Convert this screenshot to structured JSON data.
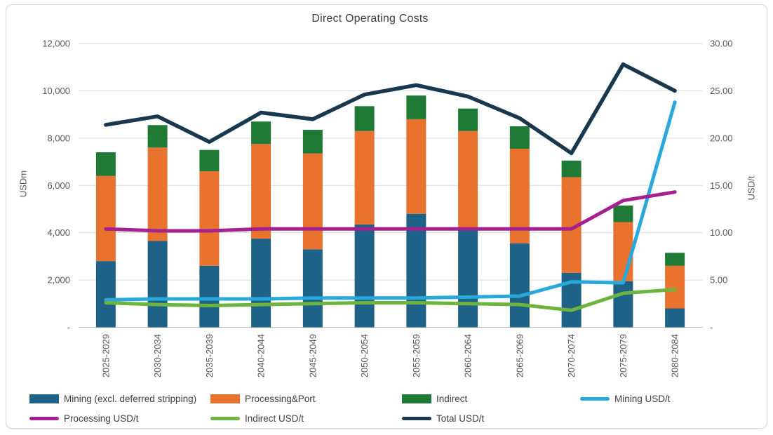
{
  "chart_data": {
    "type": "combo-stacked-bar-line",
    "title": "Direct Operating Costs",
    "categories": [
      "2025-2029",
      "2030-2034",
      "2035-2039",
      "2040-2044",
      "2045-2049",
      "2050-2054",
      "2055-2059",
      "2060-2064",
      "2065-2069",
      "2070-2074",
      "2075-2079",
      "2080-2084"
    ],
    "left_axis": {
      "label": "USDm",
      "min": 0,
      "max": 12000,
      "step": 2000,
      "tick_labels_top_down": [
        "12,000",
        "10,000",
        "8,000",
        "6,000",
        "4,000",
        "2,000",
        "-"
      ]
    },
    "right_axis": {
      "label": "USD/t",
      "min": 0,
      "max": 30,
      "step": 5,
      "tick_labels_top_down": [
        "30.00",
        "25.00",
        "20.00",
        "15.00",
        "10.00",
        "5.00",
        "-"
      ]
    },
    "grid": "horizontal",
    "bar_series": [
      {
        "name": "Mining (excl. deferred stripping)",
        "color": "#1f6287",
        "values": [
          2800,
          3650,
          2600,
          3750,
          3300,
          4350,
          4800,
          4150,
          3550,
          2300,
          1950,
          800
        ]
      },
      {
        "name": "Processing&Port",
        "color": "#e8722e",
        "values": [
          3600,
          3950,
          4000,
          4000,
          4050,
          3950,
          4000,
          4150,
          4000,
          4050,
          2500,
          1800
        ]
      },
      {
        "name": "Indirect",
        "color": "#1e7a34",
        "values": [
          1000,
          950,
          900,
          950,
          1000,
          1050,
          1000,
          950,
          950,
          700,
          700,
          550
        ]
      }
    ],
    "line_series": [
      {
        "name": "Mining USD/t",
        "color": "#29a8dc",
        "values": [
          2.9,
          3.0,
          3.0,
          3.0,
          3.1,
          3.1,
          3.1,
          3.2,
          3.3,
          4.8,
          4.7,
          23.8
        ]
      },
      {
        "name": "Processing USD/t",
        "color": "#a62190",
        "values": [
          10.4,
          10.2,
          10.2,
          10.4,
          10.4,
          10.4,
          10.4,
          10.4,
          10.4,
          10.4,
          13.4,
          14.3
        ]
      },
      {
        "name": "Indirect USD/t",
        "color": "#6cb33f",
        "values": [
          2.6,
          2.4,
          2.3,
          2.4,
          2.5,
          2.6,
          2.6,
          2.5,
          2.4,
          1.8,
          3.6,
          4.0
        ]
      },
      {
        "name": "Total USD/t",
        "color": "#17384f",
        "values": [
          21.4,
          22.3,
          19.6,
          22.7,
          22.0,
          24.6,
          25.6,
          24.4,
          22.1,
          18.4,
          27.8,
          25.0
        ]
      }
    ],
    "legend_rows": [
      [
        "Mining (excl. deferred stripping)",
        "Processing&Port",
        "Indirect",
        "Mining USD/t"
      ],
      [
        "Processing USD/t",
        "Indirect USD/t",
        "Total USD/t"
      ]
    ],
    "colors": {
      "gridline": "#d9d9d9",
      "axis_line": "#bfbfbf",
      "tick_text": "#595959",
      "title_text": "#404040"
    }
  }
}
